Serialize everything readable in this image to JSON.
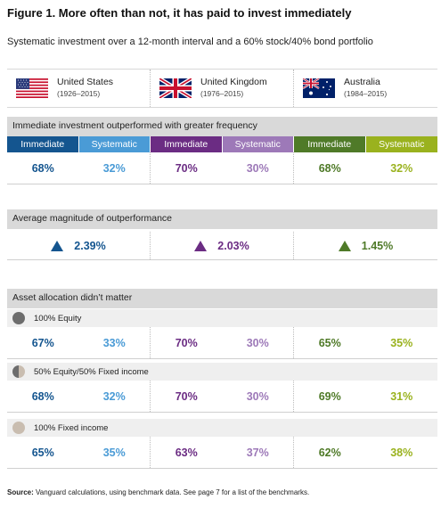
{
  "title": "Figure 1. More often than not, it has paid to invest immediately",
  "subtitle": "Systematic investment over a 12-month interval and a 60% stock/40% bond portfolio",
  "countries": [
    {
      "name": "United States",
      "years": "(1926–2015)",
      "flag": "us-flag-icon"
    },
    {
      "name": "United Kingdom",
      "years": "(1976–2015)",
      "flag": "uk-flag-icon"
    },
    {
      "name": "Australia",
      "years": "(1984–2015)",
      "flag": "australia-flag-icon"
    }
  ],
  "legend": {
    "immediate": "Immediate",
    "systematic": "Systematic"
  },
  "colors": {
    "us_immediate": "#14558f",
    "us_systematic": "#4a9bd6",
    "uk_immediate": "#6b2c83",
    "uk_systematic": "#9d79b8",
    "au_immediate": "#4f7a28",
    "au_systematic": "#9ab21e",
    "section_bg": "#d9d9d9"
  },
  "frequency": {
    "heading": "Immediate investment outperformed with greater frequency",
    "values": [
      "68%",
      "32%",
      "70%",
      "30%",
      "68%",
      "32%"
    ]
  },
  "magnitude": {
    "heading": "Average magnitude of outperformance",
    "values": [
      "2.39%",
      "2.03%",
      "1.45%"
    ]
  },
  "allocation": {
    "heading": "Asset allocation didn’t matter",
    "rows": [
      {
        "label": "100% Equity",
        "icon": "full-pie-icon",
        "values": [
          "67%",
          "33%",
          "70%",
          "30%",
          "65%",
          "35%"
        ]
      },
      {
        "label": "50% Equity/50% Fixed income",
        "icon": "half-pie-icon",
        "values": [
          "68%",
          "32%",
          "70%",
          "30%",
          "69%",
          "31%"
        ]
      },
      {
        "label": "100% Fixed income",
        "icon": "light-pie-icon",
        "values": [
          "65%",
          "35%",
          "63%",
          "37%",
          "62%",
          "38%"
        ]
      }
    ]
  },
  "source": {
    "label": "Source:",
    "text": "Vanguard calculations, using benchmark data. See page 7 for a list of the benchmarks."
  }
}
